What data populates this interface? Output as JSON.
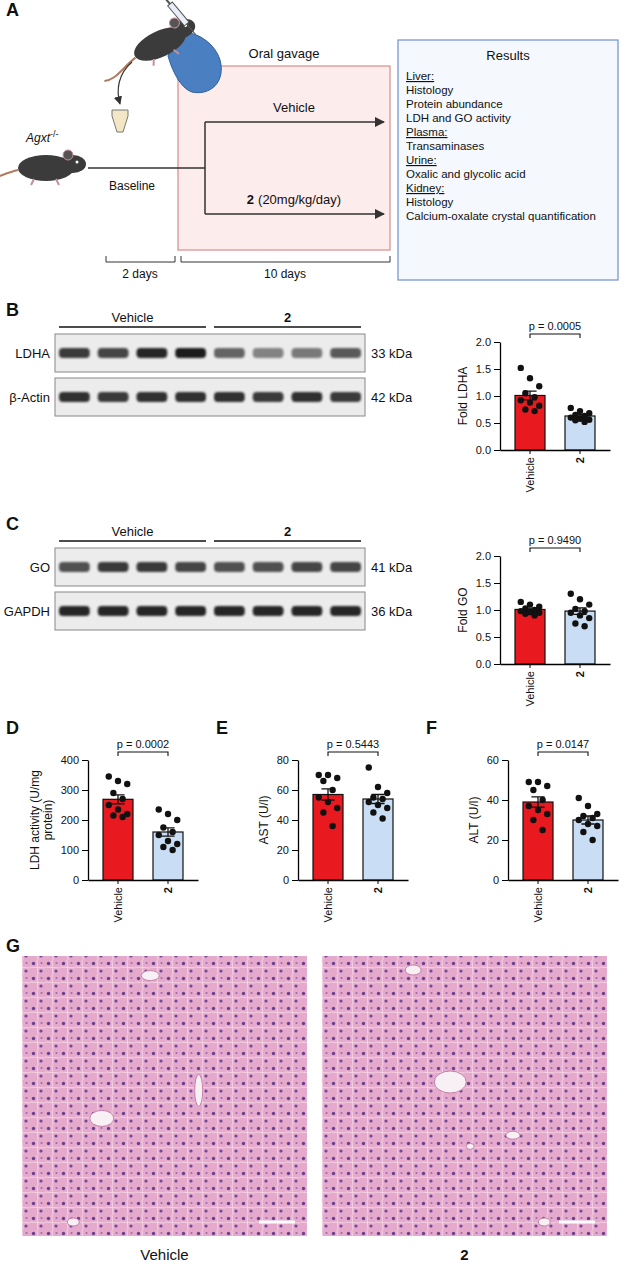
{
  "diagram": {
    "label": "A",
    "genotype": "Agxt",
    "genotype_superscript": "-/-",
    "baseline": "Baseline",
    "treatment_box": "Oral gavage",
    "arms": [
      {
        "name": "Vehicle"
      },
      {
        "name": "2",
        "dose": "(20mg/kg/day)"
      }
    ],
    "durations": [
      "2 days",
      "10 days"
    ],
    "results": {
      "title": "Results",
      "sections": [
        {
          "heading": "Liver:",
          "items": [
            "Histology",
            "Protein abundance",
            "LDH and GO activity"
          ]
        },
        {
          "heading": "Plasma:",
          "items": [
            "Transaminases"
          ]
        },
        {
          "heading": "Urine:",
          "items": [
            "Oxalic and glycolic acid"
          ]
        },
        {
          "heading": "Kidney:",
          "items": [
            "Histology",
            "Calcium-oxalate crystal quantification"
          ]
        }
      ]
    }
  },
  "blots": [
    {
      "label": "B",
      "groups": [
        "Vehicle",
        "2"
      ],
      "rows": [
        {
          "protein": "LDHA",
          "size": "33 kDa"
        },
        {
          "protein": "β-Actin",
          "size": "42 kDa"
        }
      ]
    },
    {
      "label": "C",
      "groups": [
        "Vehicle",
        "2"
      ],
      "rows": [
        {
          "protein": "GO",
          "size": "41 kDa"
        },
        {
          "protein": "GAPDH",
          "size": "36 kDa"
        }
      ]
    }
  ],
  "chart_data": [
    {
      "type": "bar",
      "ylabel": "Fold LDHA",
      "categories": [
        "Vehicle",
        "2"
      ],
      "values": [
        1.01,
        0.63
      ],
      "errors": [
        0.08,
        0.025
      ],
      "points": [
        [
          1.52,
          1.33,
          1.18,
          1.05,
          0.98,
          0.92,
          0.88,
          0.82,
          0.75,
          0.72
        ],
        [
          0.78,
          0.72,
          0.68,
          0.65,
          0.63,
          0.6,
          0.58,
          0.56,
          0.55,
          0.52
        ]
      ],
      "colors": [
        "#e8191f",
        "#c9def4"
      ],
      "ylim": [
        0,
        2
      ],
      "yticks": [
        {
          "value": 0,
          "label": "0.0"
        },
        0.5,
        {
          "value": 1,
          "label": "1.0"
        },
        1.5,
        {
          "value": 2,
          "label": "2.0"
        }
      ],
      "annotation": "p = 0.0005"
    },
    {
      "type": "bar",
      "ylabel": "Fold GO",
      "categories": [
        "Vehicle",
        "2"
      ],
      "values": [
        1.01,
        0.98
      ],
      "errors": [
        0.025,
        0.06
      ],
      "points": [
        [
          1.15,
          1.1,
          1.06,
          1.03,
          1.0,
          0.98,
          0.96,
          0.95,
          0.93,
          0.9
        ],
        [
          1.3,
          1.2,
          1.1,
          1.02,
          0.98,
          0.95,
          0.9,
          0.85,
          0.75,
          0.7
        ]
      ],
      "colors": [
        "#e8191f",
        "#c9def4"
      ],
      "ylim": [
        0,
        2
      ],
      "yticks": [
        {
          "value": 0,
          "label": "0.0"
        },
        0.5,
        {
          "value": 1,
          "label": "1.0"
        },
        1.5,
        {
          "value": 2,
          "label": "2.0"
        }
      ],
      "annotation": "p = 0.9490"
    },
    {
      "type": "bar",
      "label": "D",
      "ylabel": "LDH activity (U/mg protein)",
      "categories": [
        "Vehicle",
        "2"
      ],
      "values": [
        269,
        160
      ],
      "errors": [
        15,
        14
      ],
      "points": [
        [
          345,
          330,
          320,
          290,
          270,
          250,
          235,
          220,
          215,
          210
        ],
        [
          235,
          220,
          200,
          175,
          160,
          150,
          130,
          120,
          110,
          100
        ]
      ],
      "colors": [
        "#e8191f",
        "#c9def4"
      ],
      "ylim": [
        0,
        400
      ],
      "yticks": [
        0,
        100,
        200,
        300,
        400
      ],
      "annotation": "p = 0.0002"
    },
    {
      "type": "bar",
      "label": "E",
      "ylabel": "AST (U/l)",
      "categories": [
        "Vehicle",
        "2"
      ],
      "values": [
        57,
        54
      ],
      "errors": [
        3.8,
        3
      ],
      "points": [
        [
          70,
          70,
          68,
          66,
          60,
          55,
          52,
          48,
          45,
          36
        ],
        [
          75,
          62,
          58,
          55,
          54,
          52,
          50,
          48,
          45,
          41
        ]
      ],
      "colors": [
        "#e8191f",
        "#c9def4"
      ],
      "ylim": [
        0,
        80
      ],
      "yticks": [
        0,
        20,
        40,
        60,
        80
      ],
      "annotation": "p = 0.5443"
    },
    {
      "type": "bar",
      "label": "F",
      "ylabel": "ALT (U/l)",
      "categories": [
        "Vehicle",
        "2"
      ],
      "values": [
        39,
        30
      ],
      "errors": [
        2.6,
        2
      ],
      "points": [
        [
          49,
          49,
          47,
          45,
          40,
          37,
          35,
          33,
          30,
          25
        ],
        [
          41,
          37,
          33,
          32,
          31,
          30,
          28,
          27,
          24,
          20
        ]
      ],
      "colors": [
        "#e8191f",
        "#c9def4"
      ],
      "ylim": [
        0,
        60
      ],
      "yticks": [
        0,
        20,
        40,
        60
      ],
      "annotation": "p = 0.0147"
    }
  ],
  "histology": {
    "label": "G",
    "images": [
      "Vehicle",
      "2"
    ]
  }
}
